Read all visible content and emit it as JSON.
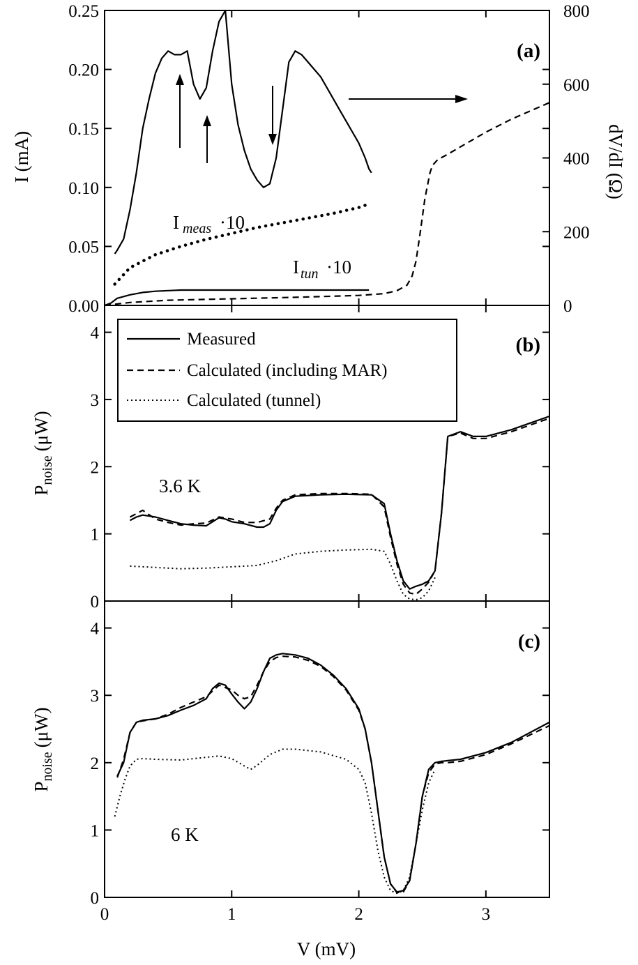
{
  "chart_data": [
    {
      "panel": "(a)",
      "type": "line",
      "xlim": [
        0,
        3.5
      ],
      "ylim": [
        0,
        0.25
      ],
      "y2lim": [
        0,
        800
      ],
      "ylabel": "I (mA)",
      "y2label": "dV/dI (Ω)",
      "yticks": [
        "0.00",
        "0.05",
        "0.10",
        "0.15",
        "0.20",
        "0.25"
      ],
      "y2ticks": [
        "0",
        "200",
        "400",
        "600",
        "800"
      ],
      "annotations": {
        "panel": "(a)",
        "imeas_main": "I",
        "imeas_sub": "meas",
        "imeas_factor": "·10",
        "itun_main": "I",
        "itun_sub": "tun",
        "itun_factor": "·10"
      },
      "series": [
        {
          "style": "solid",
          "axis": "y2",
          "x": [
            0.08,
            0.1,
            0.15,
            0.2,
            0.25,
            0.3,
            0.35,
            0.4,
            0.45,
            0.5,
            0.55,
            0.6,
            0.65,
            0.7,
            0.75,
            0.8,
            0.85,
            0.9,
            0.95,
            1.0,
            1.05,
            1.1,
            1.15,
            1.2,
            1.25,
            1.3,
            1.35,
            1.4,
            1.45,
            1.5,
            1.55,
            1.6,
            1.65,
            1.7,
            1.75,
            1.8,
            1.85,
            1.9,
            1.95,
            2.0,
            2.05,
            2.08,
            2.1
          ],
          "y": [
            140,
            150,
            180,
            260,
            360,
            480,
            560,
            630,
            670,
            690,
            680,
            680,
            690,
            600,
            560,
            590,
            690,
            770,
            800,
            600,
            490,
            420,
            370,
            340,
            320,
            330,
            400,
            530,
            660,
            690,
            680,
            660,
            640,
            620,
            590,
            560,
            530,
            500,
            470,
            440,
            400,
            370,
            360
          ]
        },
        {
          "style": "dashed",
          "axis": "y2",
          "x": [
            0,
            0.2,
            0.5,
            1.0,
            1.5,
            2.0,
            2.2,
            2.3,
            2.38,
            2.42,
            2.45,
            2.48,
            2.52,
            2.56,
            2.58,
            2.62,
            2.7,
            2.8,
            3.0,
            3.2,
            3.5
          ],
          "y": [
            0,
            8,
            14,
            18,
            22,
            27,
            32,
            40,
            55,
            80,
            120,
            190,
            290,
            360,
            380,
            395,
            410,
            430,
            470,
            505,
            550
          ]
        },
        {
          "style": "dotted-thick",
          "axis": "y",
          "x": [
            0.08,
            0.2,
            0.4,
            0.6,
            0.8,
            1.0,
            1.2,
            1.4,
            1.6,
            1.8,
            2.0,
            2.08
          ],
          "y": [
            0.018,
            0.032,
            0.043,
            0.05,
            0.056,
            0.061,
            0.066,
            0.07,
            0.074,
            0.078,
            0.083,
            0.086
          ]
        },
        {
          "style": "solid",
          "axis": "y",
          "x": [
            0,
            0.05,
            0.1,
            0.2,
            0.3,
            0.4,
            0.6,
            0.8,
            1.0,
            1.5,
            2.0,
            2.08
          ],
          "y": [
            0,
            0.002,
            0.006,
            0.009,
            0.011,
            0.012,
            0.013,
            0.013,
            0.013,
            0.013,
            0.013,
            0.013
          ]
        }
      ]
    },
    {
      "panel": "(b)",
      "type": "line",
      "xlim": [
        0,
        3.5
      ],
      "ylim": [
        0,
        4.4
      ],
      "ylabel_main": "P",
      "ylabel_sub": "noise",
      "ylabel_unit": "(μW)",
      "yticks": [
        "0",
        "1",
        "2",
        "3",
        "4"
      ],
      "annotations": {
        "panel": "(b)",
        "temperature": "3.6 K"
      },
      "legend": [
        "Measured",
        "Calculated (including MAR)",
        "Calculated (tunnel)"
      ],
      "legend_position": "top-left",
      "series": [
        {
          "name": "Measured",
          "style": "solid",
          "x": [
            0.2,
            0.25,
            0.3,
            0.4,
            0.5,
            0.6,
            0.7,
            0.8,
            0.85,
            0.9,
            0.95,
            1.0,
            1.1,
            1.2,
            1.25,
            1.3,
            1.35,
            1.4,
            1.5,
            1.7,
            1.9,
            2.1,
            2.2,
            2.25,
            2.3,
            2.35,
            2.4,
            2.45,
            2.5,
            2.55,
            2.6,
            2.65,
            2.7,
            2.8,
            2.9,
            3.0,
            3.2,
            3.5
          ],
          "y": [
            1.2,
            1.25,
            1.28,
            1.25,
            1.2,
            1.15,
            1.13,
            1.12,
            1.18,
            1.24,
            1.22,
            1.18,
            1.15,
            1.1,
            1.1,
            1.15,
            1.35,
            1.48,
            1.56,
            1.58,
            1.59,
            1.58,
            1.45,
            1.0,
            0.6,
            0.3,
            0.18,
            0.22,
            0.25,
            0.3,
            0.45,
            1.3,
            2.45,
            2.52,
            2.45,
            2.45,
            2.55,
            2.75
          ]
        },
        {
          "name": "Calculated (including MAR)",
          "style": "dashed",
          "x": [
            0.2,
            0.3,
            0.4,
            0.5,
            0.6,
            0.7,
            0.8,
            0.9,
            1.0,
            1.1,
            1.2,
            1.3,
            1.35,
            1.4,
            1.5,
            1.7,
            1.9,
            2.1,
            2.2,
            2.25,
            2.3,
            2.35,
            2.4,
            2.45,
            2.5,
            2.55,
            2.6,
            2.65,
            2.7,
            2.8,
            2.9,
            3.0,
            3.2,
            3.5
          ],
          "y": [
            1.25,
            1.35,
            1.22,
            1.17,
            1.13,
            1.15,
            1.16,
            1.25,
            1.22,
            1.17,
            1.17,
            1.22,
            1.38,
            1.5,
            1.58,
            1.6,
            1.6,
            1.59,
            1.4,
            0.95,
            0.55,
            0.25,
            0.12,
            0.1,
            0.18,
            0.28,
            0.45,
            1.3,
            2.45,
            2.5,
            2.42,
            2.42,
            2.52,
            2.72
          ]
        },
        {
          "name": "Calculated (tunnel)",
          "style": "dotted",
          "x": [
            0.2,
            0.4,
            0.6,
            0.8,
            1.0,
            1.2,
            1.35,
            1.5,
            1.7,
            1.9,
            2.1,
            2.2,
            2.25,
            2.3,
            2.35,
            2.4,
            2.45,
            2.5,
            2.55,
            2.6
          ],
          "y": [
            0.52,
            0.5,
            0.48,
            0.49,
            0.51,
            0.53,
            0.6,
            0.7,
            0.74,
            0.76,
            0.77,
            0.74,
            0.55,
            0.3,
            0.1,
            0.03,
            0.02,
            0.05,
            0.15,
            0.35
          ]
        }
      ]
    },
    {
      "panel": "(c)",
      "type": "line",
      "xlim": [
        0,
        3.5
      ],
      "ylim": [
        0,
        4.4
      ],
      "xlabel": "V (mV)",
      "ylabel_main": "P",
      "ylabel_sub": "noise",
      "ylabel_unit": "(μW)",
      "xticks": [
        "0",
        "1",
        "2",
        "3"
      ],
      "yticks": [
        "0",
        "1",
        "2",
        "3",
        "4"
      ],
      "annotations": {
        "panel": "(c)",
        "temperature": "6 K"
      },
      "series": [
        {
          "name": "Measured",
          "style": "solid",
          "x": [
            0.1,
            0.15,
            0.2,
            0.25,
            0.3,
            0.4,
            0.5,
            0.6,
            0.7,
            0.8,
            0.85,
            0.9,
            0.95,
            1.0,
            1.05,
            1.1,
            1.15,
            1.2,
            1.25,
            1.3,
            1.35,
            1.4,
            1.5,
            1.6,
            1.7,
            1.8,
            1.9,
            2.0,
            2.05,
            2.1,
            2.15,
            2.2,
            2.25,
            2.3,
            2.35,
            2.4,
            2.45,
            2.5,
            2.55,
            2.6,
            2.65,
            2.7,
            2.8,
            3.0,
            3.2,
            3.5
          ],
          "y": [
            1.8,
            2.0,
            2.45,
            2.6,
            2.63,
            2.65,
            2.7,
            2.78,
            2.85,
            2.95,
            3.1,
            3.18,
            3.15,
            3.02,
            2.9,
            2.8,
            2.9,
            3.1,
            3.35,
            3.55,
            3.6,
            3.62,
            3.6,
            3.55,
            3.45,
            3.3,
            3.1,
            2.8,
            2.5,
            2.0,
            1.3,
            0.6,
            0.2,
            0.08,
            0.1,
            0.25,
            0.8,
            1.5,
            1.9,
            2.0,
            2.02,
            2.03,
            2.05,
            2.15,
            2.3,
            2.6
          ]
        },
        {
          "name": "Calculated (including MAR)",
          "style": "dashed",
          "x": [
            0.1,
            0.15,
            0.2,
            0.25,
            0.3,
            0.4,
            0.5,
            0.6,
            0.7,
            0.8,
            0.9,
            1.0,
            1.05,
            1.1,
            1.15,
            1.2,
            1.25,
            1.3,
            1.35,
            1.4,
            1.5,
            1.6,
            1.7,
            1.8,
            1.9,
            2.0,
            2.05,
            2.1,
            2.15,
            2.2,
            2.25,
            2.3,
            2.35,
            2.4,
            2.45,
            2.5,
            2.55,
            2.6,
            2.65,
            2.7,
            2.8,
            3.0,
            3.2,
            3.5
          ],
          "y": [
            1.78,
            2.05,
            2.45,
            2.6,
            2.62,
            2.65,
            2.72,
            2.82,
            2.9,
            2.98,
            3.15,
            3.08,
            3.0,
            2.95,
            2.98,
            3.15,
            3.35,
            3.5,
            3.56,
            3.58,
            3.57,
            3.52,
            3.43,
            3.28,
            3.08,
            2.78,
            2.5,
            2.0,
            1.3,
            0.6,
            0.2,
            0.07,
            0.08,
            0.25,
            0.8,
            1.5,
            1.85,
            1.98,
            2.0,
            2.0,
            2.02,
            2.12,
            2.28,
            2.55
          ]
        },
        {
          "name": "Calculated (tunnel)",
          "style": "dotted",
          "x": [
            0.08,
            0.12,
            0.16,
            0.2,
            0.25,
            0.3,
            0.4,
            0.6,
            0.8,
            0.9,
            1.0,
            1.1,
            1.15,
            1.2,
            1.3,
            1.4,
            1.5,
            1.7,
            1.9,
            2.0,
            2.05,
            2.1,
            2.15,
            2.2,
            2.25,
            2.3,
            2.35,
            2.4,
            2.45,
            2.5,
            2.55,
            2.6
          ],
          "y": [
            1.2,
            1.5,
            1.75,
            1.95,
            2.05,
            2.06,
            2.05,
            2.04,
            2.08,
            2.1,
            2.06,
            1.95,
            1.9,
            1.96,
            2.12,
            2.2,
            2.2,
            2.16,
            2.05,
            1.9,
            1.7,
            1.25,
            0.7,
            0.3,
            0.1,
            0.06,
            0.1,
            0.3,
            0.8,
            1.3,
            1.7,
            1.9
          ]
        }
      ]
    }
  ]
}
